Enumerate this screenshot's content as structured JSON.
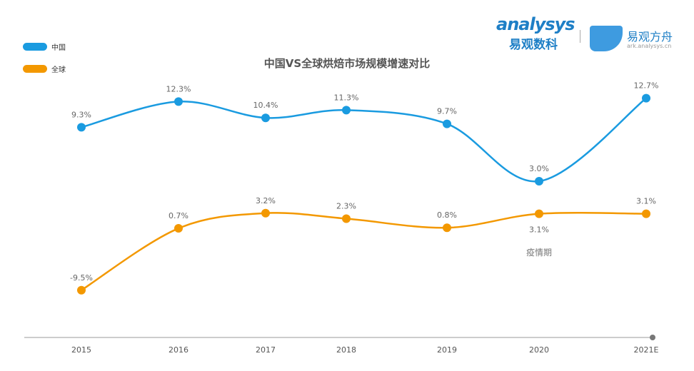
{
  "logo": {
    "brand_en_a": "nalysys",
    "brand_en_b": "sys",
    "brand_cn": "易观数科",
    "brand2_cn": "易观方舟",
    "brand2_url": "ark.analysys.cn"
  },
  "chart_data": {
    "type": "line",
    "title": "中国VS全球烘焙市场规模增速对比",
    "categories": [
      "2015",
      "2016",
      "2017",
      "2018",
      "2019",
      "2020",
      "2021E"
    ],
    "series": [
      {
        "name": "中国",
        "color": "#1a9be0",
        "values": [
          9.3,
          12.3,
          10.4,
          11.3,
          9.7,
          3.0,
          12.7
        ],
        "labels": [
          "9.3%",
          "12.3%",
          "10.4%",
          "11.3%",
          "9.7%",
          "3.0%",
          "12.7%"
        ]
      },
      {
        "name": "全球",
        "color": "#f39800",
        "values": [
          -9.5,
          0.7,
          3.2,
          2.3,
          0.8,
          3.1,
          3.1
        ],
        "labels": [
          "-9.5%",
          "0.7%",
          "3.2%",
          "2.3%",
          "0.8%",
          "3.1%",
          "3.1%"
        ]
      }
    ],
    "annotations": [
      {
        "category": "2020",
        "text": "疫情期"
      }
    ],
    "legend": "top-left",
    "grid": false,
    "smooth": true
  }
}
